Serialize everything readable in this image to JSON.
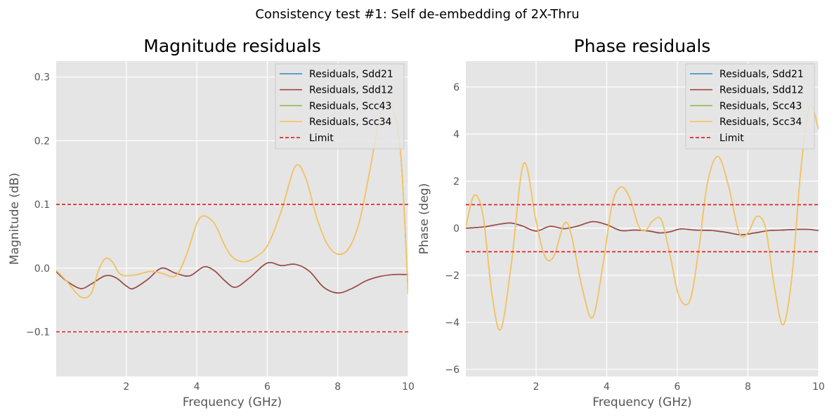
{
  "figure": {
    "title": "Consistency test #1: Self de-embedding of 2X-Thru"
  },
  "chart_data": [
    {
      "type": "line",
      "title": "Magnitude residuals",
      "xlabel": "Frequency (GHz)",
      "ylabel": "Magnitude (dB)",
      "xlim": [
        0.01,
        10
      ],
      "ylim": [
        -0.17,
        0.325
      ],
      "xticks": [
        2,
        4,
        6,
        8,
        10
      ],
      "xtick_labels": [
        "2",
        "4",
        "6",
        "8",
        "10"
      ],
      "yticks": [
        -0.1,
        0.0,
        0.1,
        0.2,
        0.3
      ],
      "ytick_labels": [
        "−0.1",
        "0.0",
        "0.1",
        "0.2",
        "0.3"
      ],
      "grid": true,
      "legend_position": "top-right",
      "series": [
        {
          "name": "Residuals, Sdd21",
          "color": "#348abd",
          "style": "solid",
          "line": "diff",
          "x": [
            0,
            0.3,
            0.7,
            1.0,
            1.4,
            1.7,
            2.0,
            2.2,
            2.6,
            3.0,
            3.4,
            3.8,
            4.2,
            4.5,
            4.8,
            5.1,
            5.5,
            6.0,
            6.4,
            6.8,
            7.2,
            7.6,
            8.0,
            8.4,
            8.8,
            9.2,
            9.6,
            10
          ],
          "y": [
            -0.005,
            -0.02,
            -0.032,
            -0.025,
            -0.012,
            -0.015,
            -0.028,
            -0.032,
            -0.018,
            0.0,
            -0.008,
            -0.012,
            0.002,
            -0.004,
            -0.02,
            -0.03,
            -0.015,
            0.008,
            0.004,
            0.006,
            -0.005,
            -0.03,
            -0.039,
            -0.032,
            -0.02,
            -0.013,
            -0.01,
            -0.01
          ]
        },
        {
          "name": "Residuals, Sdd12",
          "color": "#a4483e",
          "style": "solid",
          "line": "diff",
          "x": [
            0,
            0.3,
            0.7,
            1.0,
            1.4,
            1.7,
            2.0,
            2.2,
            2.6,
            3.0,
            3.4,
            3.8,
            4.2,
            4.5,
            4.8,
            5.1,
            5.5,
            6.0,
            6.4,
            6.8,
            7.2,
            7.6,
            8.0,
            8.4,
            8.8,
            9.2,
            9.6,
            10
          ],
          "y": [
            -0.005,
            -0.02,
            -0.032,
            -0.025,
            -0.012,
            -0.015,
            -0.028,
            -0.032,
            -0.018,
            0.0,
            -0.008,
            -0.012,
            0.002,
            -0.004,
            -0.02,
            -0.03,
            -0.015,
            0.008,
            0.004,
            0.006,
            -0.005,
            -0.03,
            -0.039,
            -0.032,
            -0.02,
            -0.013,
            -0.01,
            -0.01
          ]
        },
        {
          "name": "Residuals, Scc43",
          "color": "#8eba42",
          "style": "solid",
          "line": "comm",
          "x": [
            0,
            0.3,
            0.7,
            1.0,
            1.2,
            1.4,
            1.6,
            1.8,
            2.0,
            2.3,
            2.7,
            3.0,
            3.4,
            3.7,
            4.0,
            4.2,
            4.5,
            4.8,
            5.0,
            5.3,
            5.6,
            6.0,
            6.4,
            6.8,
            7.1,
            7.4,
            7.7,
            8.0,
            8.3,
            8.6,
            8.9,
            9.2,
            9.4,
            9.6,
            9.8,
            10
          ],
          "y": [
            -0.003,
            -0.02,
            -0.045,
            -0.04,
            -0.005,
            0.015,
            0.01,
            -0.008,
            -0.012,
            -0.01,
            -0.005,
            -0.008,
            -0.012,
            0.02,
            0.07,
            0.082,
            0.07,
            0.035,
            0.018,
            0.01,
            0.015,
            0.035,
            0.09,
            0.16,
            0.14,
            0.08,
            0.038,
            0.022,
            0.03,
            0.07,
            0.15,
            0.24,
            0.262,
            0.245,
            0.17,
            -0.04
          ]
        },
        {
          "name": "Residuals, Scc34",
          "color": "#fbc15e",
          "style": "solid",
          "line": "comm",
          "x": [
            0,
            0.3,
            0.7,
            1.0,
            1.2,
            1.4,
            1.6,
            1.8,
            2.0,
            2.3,
            2.7,
            3.0,
            3.4,
            3.7,
            4.0,
            4.2,
            4.5,
            4.8,
            5.0,
            5.3,
            5.6,
            6.0,
            6.4,
            6.8,
            7.1,
            7.4,
            7.7,
            8.0,
            8.3,
            8.6,
            8.9,
            9.2,
            9.4,
            9.6,
            9.8,
            10
          ],
          "y": [
            -0.003,
            -0.02,
            -0.045,
            -0.04,
            -0.005,
            0.015,
            0.01,
            -0.008,
            -0.012,
            -0.01,
            -0.005,
            -0.008,
            -0.012,
            0.02,
            0.07,
            0.082,
            0.07,
            0.035,
            0.018,
            0.01,
            0.015,
            0.035,
            0.09,
            0.16,
            0.14,
            0.08,
            0.038,
            0.022,
            0.03,
            0.07,
            0.15,
            0.24,
            0.262,
            0.245,
            0.17,
            -0.04
          ]
        },
        {
          "name": "Limit",
          "color": "#e41a1c",
          "style": "dashed",
          "line": "limit",
          "x": [
            0,
            10
          ],
          "y": [
            0.1,
            0.1
          ],
          "y_lower": [
            -0.1,
            -0.1
          ]
        }
      ]
    },
    {
      "type": "line",
      "title": "Phase residuals",
      "xlabel": "Frequency (GHz)",
      "ylabel": "Phase (deg)",
      "xlim": [
        0.01,
        10
      ],
      "ylim": [
        -6.3,
        7.1
      ],
      "xticks": [
        2,
        4,
        6,
        8,
        10
      ],
      "xtick_labels": [
        "2",
        "4",
        "6",
        "8",
        "10"
      ],
      "yticks": [
        -6,
        -4,
        -2,
        0,
        2,
        4,
        6
      ],
      "ytick_labels": [
        "−6",
        "−4",
        "−2",
        "0",
        "2",
        "4",
        "6"
      ],
      "grid": true,
      "legend_position": "top-right",
      "series": [
        {
          "name": "Residuals, Sdd21",
          "color": "#348abd",
          "style": "solid",
          "line": "diff",
          "x": [
            0,
            0.5,
            1.0,
            1.3,
            1.6,
            2.0,
            2.4,
            2.8,
            3.2,
            3.6,
            4.0,
            4.4,
            4.8,
            5.2,
            5.5,
            5.8,
            6.1,
            6.5,
            7.0,
            7.4,
            7.8,
            8.2,
            8.6,
            9.0,
            9.4,
            9.7,
            10
          ],
          "y": [
            0.0,
            0.05,
            0.18,
            0.22,
            0.1,
            -0.12,
            0.08,
            -0.02,
            0.1,
            0.28,
            0.15,
            -0.1,
            -0.08,
            -0.12,
            -0.2,
            -0.15,
            -0.03,
            -0.08,
            -0.1,
            -0.18,
            -0.28,
            -0.2,
            -0.1,
            -0.08,
            -0.05,
            -0.05,
            -0.1
          ]
        },
        {
          "name": "Residuals, Sdd12",
          "color": "#a4483e",
          "style": "solid",
          "line": "diff",
          "x": [
            0,
            0.5,
            1.0,
            1.3,
            1.6,
            2.0,
            2.4,
            2.8,
            3.2,
            3.6,
            4.0,
            4.4,
            4.8,
            5.2,
            5.5,
            5.8,
            6.1,
            6.5,
            7.0,
            7.4,
            7.8,
            8.2,
            8.6,
            9.0,
            9.4,
            9.7,
            10
          ],
          "y": [
            0.0,
            0.05,
            0.18,
            0.22,
            0.1,
            -0.12,
            0.08,
            -0.02,
            0.1,
            0.28,
            0.15,
            -0.1,
            -0.08,
            -0.12,
            -0.2,
            -0.15,
            -0.03,
            -0.08,
            -0.1,
            -0.18,
            -0.28,
            -0.2,
            -0.1,
            -0.08,
            -0.05,
            -0.05,
            -0.1
          ]
        },
        {
          "name": "Residuals, Scc43",
          "color": "#8eba42",
          "style": "solid",
          "line": "comm",
          "x": [
            0,
            0.25,
            0.5,
            0.75,
            1.0,
            1.3,
            1.65,
            2.0,
            2.25,
            2.5,
            2.8,
            3.0,
            3.3,
            3.6,
            3.9,
            4.15,
            4.4,
            4.65,
            4.9,
            5.1,
            5.3,
            5.55,
            5.8,
            6.05,
            6.35,
            6.6,
            6.85,
            7.15,
            7.45,
            7.75,
            8.0,
            8.25,
            8.5,
            8.75,
            9.0,
            9.25,
            9.5,
            9.75,
            10
          ],
          "y": [
            0.0,
            1.4,
            0.5,
            -2.8,
            -4.3,
            -1.5,
            2.75,
            0.3,
            -1.2,
            -1.2,
            0.2,
            -0.3,
            -2.5,
            -3.8,
            -1.5,
            1.0,
            1.75,
            1.3,
            0.1,
            -0.1,
            0.3,
            0.35,
            -1.2,
            -2.9,
            -3.1,
            -1.0,
            1.9,
            3.05,
            1.8,
            -0.2,
            -0.2,
            0.5,
            0.0,
            -2.5,
            -4.1,
            -2.0,
            2.5,
            5.2,
            4.2
          ]
        },
        {
          "name": "Residuals, Scc34",
          "color": "#fbc15e",
          "style": "solid",
          "line": "comm",
          "x": [
            0,
            0.25,
            0.5,
            0.75,
            1.0,
            1.3,
            1.65,
            2.0,
            2.25,
            2.5,
            2.8,
            3.0,
            3.3,
            3.6,
            3.9,
            4.15,
            4.4,
            4.65,
            4.9,
            5.1,
            5.3,
            5.55,
            5.8,
            6.05,
            6.35,
            6.6,
            6.85,
            7.15,
            7.45,
            7.75,
            8.0,
            8.25,
            8.5,
            8.75,
            9.0,
            9.25,
            9.5,
            9.75,
            10
          ],
          "y": [
            0.0,
            1.4,
            0.5,
            -2.8,
            -4.3,
            -1.5,
            2.75,
            0.3,
            -1.2,
            -1.2,
            0.2,
            -0.3,
            -2.5,
            -3.8,
            -1.5,
            1.0,
            1.75,
            1.3,
            0.1,
            -0.1,
            0.3,
            0.35,
            -1.2,
            -2.9,
            -3.1,
            -1.0,
            1.9,
            3.05,
            1.8,
            -0.2,
            -0.2,
            0.5,
            0.0,
            -2.5,
            -4.1,
            -2.0,
            2.5,
            5.2,
            4.2
          ]
        },
        {
          "name": "Limit",
          "color": "#e41a1c",
          "style": "dashed",
          "line": "limit",
          "x": [
            0,
            10
          ],
          "y": [
            1,
            1
          ],
          "y_lower": [
            -1,
            -1
          ]
        }
      ]
    }
  ]
}
